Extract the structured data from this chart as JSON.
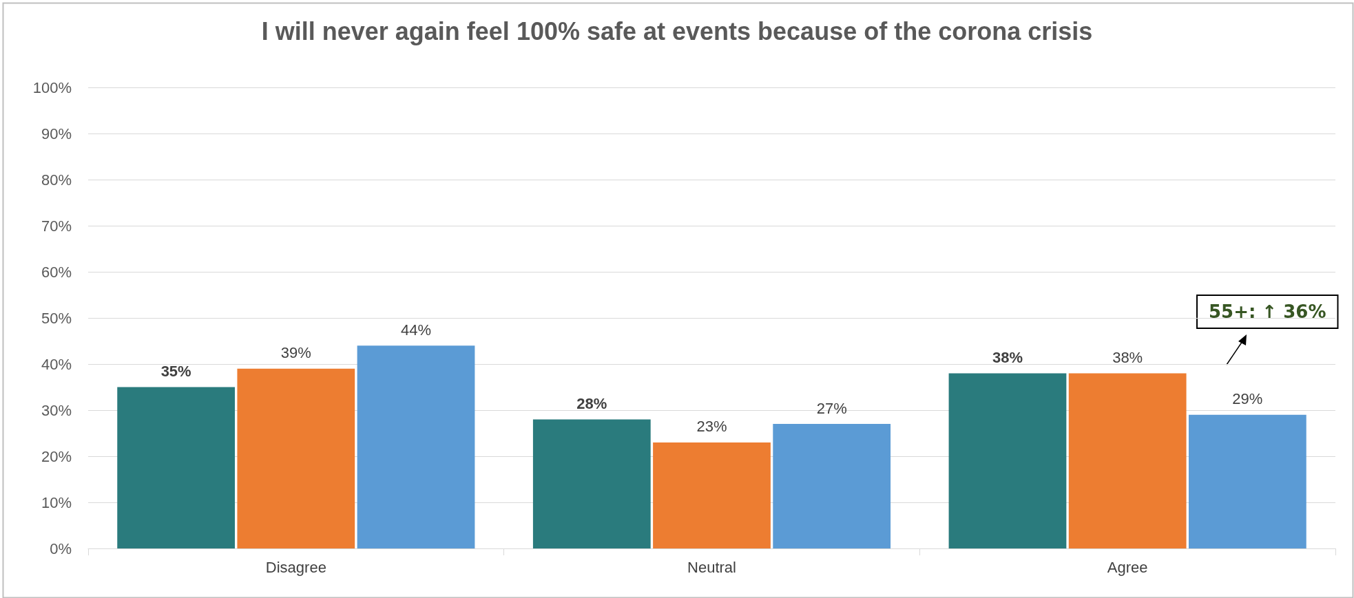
{
  "chart_data": {
    "type": "bar",
    "title": "I will never again feel 100% safe at events because of the corona crisis",
    "categories": [
      "Disagree",
      "Neutral",
      "Agree"
    ],
    "series": [
      {
        "color": "#2a7b7d",
        "values": [
          35,
          28,
          38
        ]
      },
      {
        "color": "#ed7d31",
        "values": [
          39,
          23,
          38
        ]
      },
      {
        "color": "#5b9bd5",
        "values": [
          44,
          27,
          29
        ]
      }
    ],
    "ylim": [
      0,
      100
    ],
    "yticks": [
      {
        "value": 0,
        "label": "0%"
      },
      {
        "value": 10,
        "label": "10%"
      },
      {
        "value": 20,
        "label": "20%"
      },
      {
        "value": 30,
        "label": "30%"
      },
      {
        "value": 40,
        "label": "40%"
      },
      {
        "value": 50,
        "label": "50%"
      },
      {
        "value": 60,
        "label": "60%"
      },
      {
        "value": 70,
        "label": "70%"
      },
      {
        "value": 80,
        "label": "80%"
      },
      {
        "value": 90,
        "label": "90%"
      },
      {
        "value": 100,
        "label": "100%"
      }
    ],
    "value_labels": [
      [
        "35%",
        "28%",
        "38%"
      ],
      [
        "39%",
        "23%",
        "38%"
      ],
      [
        "44%",
        "27%",
        "29%"
      ]
    ],
    "annotations": [
      "55+: ↑ 36%"
    ],
    "grid": "y"
  }
}
